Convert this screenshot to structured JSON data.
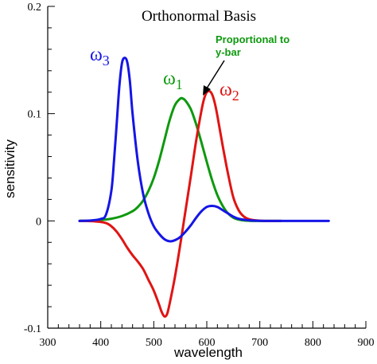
{
  "chart_data": {
    "type": "line",
    "title": "Orthonormal Basis",
    "xlabel": "wavelength",
    "ylabel": "sensitivity",
    "xlim": [
      300,
      900
    ],
    "ylim": [
      -0.1,
      0.2
    ],
    "x_ticks": [
      "300",
      "400",
      "500",
      "600",
      "700",
      "800",
      "900"
    ],
    "y_ticks": [
      {
        "value": -0.1,
        "label": "-0.1"
      },
      {
        "value": 0,
        "label": "0"
      },
      {
        "value": 0.1,
        "label": "0.1"
      },
      {
        "value": 0.2,
        "label": "0.2"
      }
    ],
    "grid": false,
    "series": [
      {
        "name": "ω3",
        "label_base": "ω",
        "label_sub": "3",
        "color": "#1515e6",
        "x": [
          360,
          380,
          400,
          410,
          420,
          425,
          430,
          435,
          440,
          445,
          450,
          455,
          460,
          470,
          480,
          490,
          500,
          510,
          520,
          530,
          540,
          550,
          560,
          570,
          580,
          590,
          600,
          610,
          620,
          630,
          640,
          650,
          660,
          680,
          700,
          730,
          760,
          800,
          830
        ],
        "y": [
          0,
          0.0003,
          0.0018,
          0.006,
          0.028,
          0.056,
          0.09,
          0.125,
          0.147,
          0.152,
          0.148,
          0.13,
          0.1,
          0.055,
          0.025,
          0.007,
          -0.005,
          -0.012,
          -0.017,
          -0.019,
          -0.018,
          -0.015,
          -0.01,
          -0.004,
          0.003,
          0.009,
          0.013,
          0.014,
          0.013,
          0.01,
          0.007,
          0.004,
          0.002,
          0.0005,
          0.0001,
          0,
          0,
          0,
          0
        ]
      },
      {
        "name": "ω1",
        "label_base": "ω",
        "label_sub": "1",
        "color": "#0e990e",
        "x": [
          360,
          380,
          400,
          420,
          440,
          460,
          470,
          480,
          490,
          500,
          510,
          520,
          530,
          540,
          550,
          555,
          560,
          570,
          580,
          590,
          600,
          610,
          620,
          630,
          640,
          650,
          660,
          670,
          680,
          690,
          700,
          720,
          740
        ],
        "y": [
          0,
          0.0002,
          0.0008,
          0.002,
          0.0045,
          0.009,
          0.013,
          0.019,
          0.028,
          0.04,
          0.056,
          0.075,
          0.094,
          0.108,
          0.114,
          0.114,
          0.112,
          0.104,
          0.09,
          0.073,
          0.055,
          0.038,
          0.024,
          0.014,
          0.007,
          0.003,
          0.0012,
          0.0004,
          0.0001,
          0,
          0,
          0,
          0
        ]
      },
      {
        "name": "ω2",
        "label_base": "ω",
        "label_sub": "2",
        "color": "#e01414",
        "x": [
          360,
          390,
          410,
          420,
          430,
          440,
          450,
          460,
          470,
          480,
          490,
          500,
          510,
          515,
          520,
          525,
          530,
          540,
          550,
          560,
          570,
          580,
          590,
          595,
          600,
          605,
          610,
          615,
          620,
          630,
          640,
          650,
          660,
          670,
          680,
          700,
          720,
          740
        ],
        "y": [
          0,
          -0.0005,
          -0.002,
          -0.005,
          -0.01,
          -0.017,
          -0.025,
          -0.032,
          -0.038,
          -0.045,
          -0.055,
          -0.065,
          -0.078,
          -0.085,
          -0.089,
          -0.087,
          -0.077,
          -0.052,
          -0.022,
          0.01,
          0.042,
          0.075,
          0.103,
          0.114,
          0.12,
          0.121,
          0.118,
          0.11,
          0.098,
          0.07,
          0.044,
          0.022,
          0.01,
          0.004,
          0.0015,
          0.0002,
          0,
          0
        ]
      }
    ],
    "annotations": [
      {
        "text_line1": "Proportional to",
        "text_line2": "y-bar",
        "color": "#0e990e",
        "arrow_to_series": "ω1"
      }
    ]
  }
}
